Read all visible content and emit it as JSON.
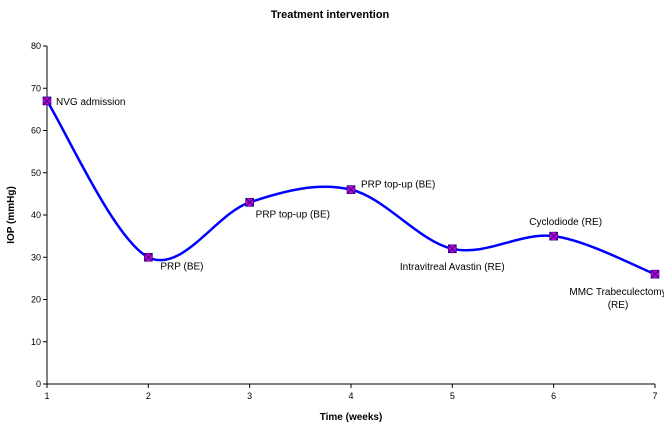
{
  "chart_data": {
    "type": "line",
    "title": "Treatment intervention",
    "xlabel": "Time (weeks)",
    "ylabel": "IOP (mmHg)",
    "xlim": [
      1,
      7
    ],
    "ylim": [
      0,
      80
    ],
    "x_ticks": [
      1,
      2,
      3,
      4,
      5,
      6,
      7
    ],
    "y_ticks": [
      0,
      10,
      20,
      30,
      40,
      50,
      60,
      70,
      80
    ],
    "grid": false,
    "legend": "none",
    "line_style": "smoothed",
    "series": [
      {
        "color": "#0000ff",
        "marker_color": "#cc00cc",
        "x": [
          1,
          2,
          3,
          4,
          5,
          6,
          7
        ],
        "y": [
          67,
          30,
          43,
          46,
          32,
          35,
          26
        ],
        "annotations": [
          [
            "NVG admission"
          ],
          [
            "PRP (BE)"
          ],
          [
            "PRP top-up (BE)"
          ],
          [
            "PRP top-up (BE)"
          ],
          [
            "Intravitreal Avastin (RE)"
          ],
          [
            "Cyclodiode (RE)"
          ],
          [
            "MMC Trabeculectomy",
            "(RE)"
          ]
        ]
      }
    ]
  }
}
